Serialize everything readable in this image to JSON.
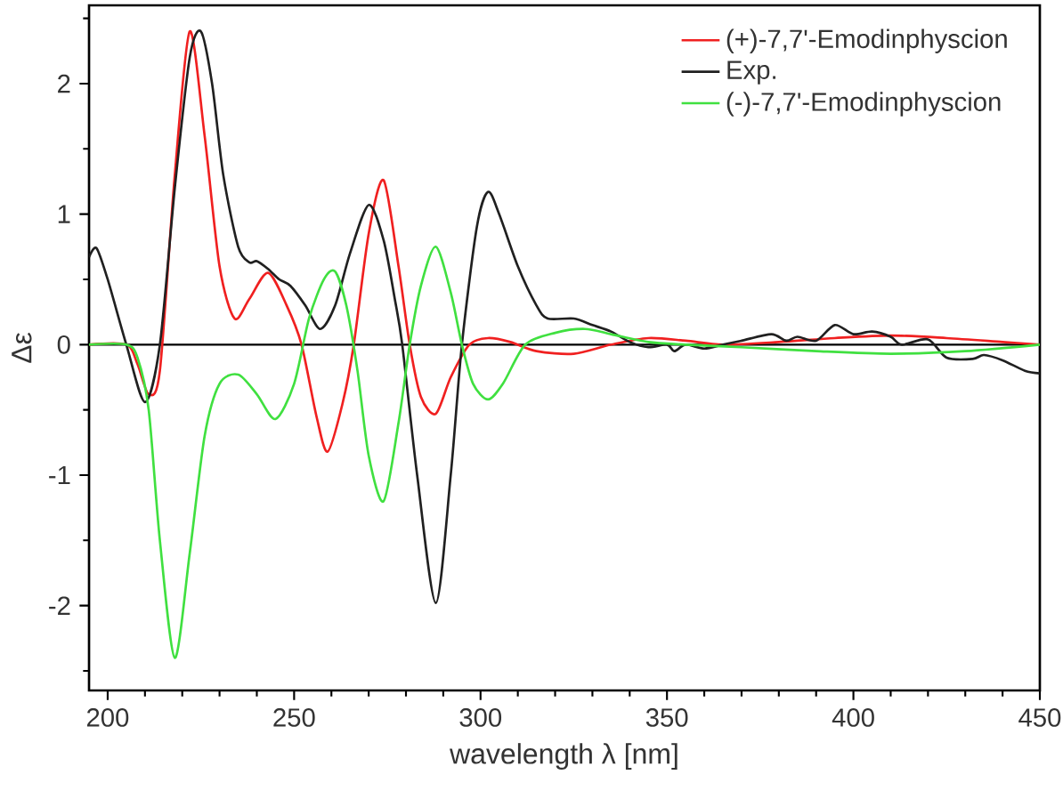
{
  "chart_data": {
    "type": "line",
    "xlabel": "wavelength λ [nm]",
    "ylabel": "Δε",
    "xlim": [
      195,
      450
    ],
    "ylim": [
      -2.65,
      2.6
    ],
    "xticks": [
      200,
      {
        "value": 210,
        "label": null
      },
      {
        "value": 220,
        "label": null
      },
      {
        "value": 230,
        "label": null
      },
      {
        "value": 240,
        "label": null
      },
      250,
      {
        "value": 260,
        "label": null
      },
      {
        "value": 270,
        "label": null
      },
      {
        "value": 280,
        "label": null
      },
      {
        "value": 290,
        "label": null
      },
      300,
      {
        "value": 310,
        "label": null
      },
      {
        "value": 320,
        "label": null
      },
      {
        "value": 330,
        "label": null
      },
      {
        "value": 340,
        "label": null
      },
      350,
      {
        "value": 360,
        "label": null
      },
      {
        "value": 370,
        "label": null
      },
      {
        "value": 380,
        "label": null
      },
      {
        "value": 390,
        "label": null
      },
      400,
      {
        "value": 410,
        "label": null
      },
      {
        "value": 420,
        "label": null
      },
      {
        "value": 430,
        "label": null
      },
      {
        "value": 440,
        "label": null
      },
      450
    ],
    "yticks": [
      {
        "value": -2.5,
        "label": null
      },
      -2,
      {
        "value": -1.5,
        "label": null
      },
      -1,
      {
        "value": -0.5,
        "label": null
      },
      0,
      {
        "value": 0.5,
        "label": null
      },
      1,
      {
        "value": 1.5,
        "label": null
      },
      2,
      {
        "value": 2.5,
        "label": null
      }
    ],
    "grid": false,
    "legend": "top right",
    "marker": "none",
    "line_style": "solid",
    "ref_lines": [
      {
        "axis": "y",
        "value": 0,
        "color": "#000000"
      }
    ],
    "series": [
      {
        "name": "(+)-7,7'-Emodinphyscion",
        "color": "#f02020",
        "x": [
          195,
          205,
          208,
          211,
          214,
          218,
          222,
          226,
          230,
          234,
          238,
          243,
          248,
          252,
          256,
          259,
          263,
          266,
          270,
          274,
          278,
          281,
          284,
          288,
          292,
          297,
          302,
          308,
          315,
          325,
          335,
          345,
          355,
          365,
          380,
          395,
          410,
          425,
          440,
          450
        ],
        "values": [
          0,
          0,
          -0.15,
          -0.38,
          -0.2,
          1.3,
          2.4,
          1.6,
          0.6,
          0.2,
          0.35,
          0.55,
          0.3,
          0,
          -0.55,
          -0.82,
          -0.45,
          0,
          0.85,
          1.26,
          0.6,
          0,
          -0.4,
          -0.53,
          -0.25,
          0,
          0.05,
          0.02,
          -0.05,
          -0.07,
          0,
          0.05,
          0.03,
          0,
          0.02,
          0.05,
          0.07,
          0.05,
          0.02,
          0
        ]
      },
      {
        "name": "Exp.",
        "color": "#202020",
        "x": [
          195,
          197,
          200,
          205,
          210,
          214,
          218,
          222,
          225,
          228,
          231,
          235,
          238,
          240,
          243,
          246,
          249,
          253,
          257,
          261,
          265,
          270,
          274,
          277,
          279,
          283,
          288,
          292,
          295,
          299,
          302,
          305,
          310,
          315,
          318,
          325,
          330,
          335,
          340,
          345,
          350,
          352,
          355,
          360,
          365,
          370,
          378,
          382,
          385,
          390,
          395,
          400,
          405,
          410,
          413,
          420,
          425,
          432,
          435,
          440,
          446,
          450
        ],
        "values": [
          0.67,
          0.74,
          0.5,
          0,
          -0.44,
          0,
          1.2,
          2.2,
          2.4,
          2.0,
          1.3,
          0.75,
          0.63,
          0.64,
          0.58,
          0.5,
          0.45,
          0.3,
          0.12,
          0.3,
          0.7,
          1.07,
          0.8,
          0.35,
          0,
          -1.0,
          -1.98,
          -1.0,
          0,
          0.9,
          1.17,
          1.0,
          0.6,
          0.3,
          0.2,
          0.2,
          0.15,
          0.1,
          0.02,
          -0.02,
          0,
          -0.05,
          0,
          -0.03,
          0,
          0.03,
          0.08,
          0.03,
          0.06,
          0.03,
          0.15,
          0.08,
          0.1,
          0.06,
          0,
          0.04,
          -0.1,
          -0.11,
          -0.08,
          -0.12,
          -0.2,
          -0.22
        ]
      },
      {
        "name": "(-)-7,7'-Emodinphyscion",
        "color": "#40e040",
        "x": [
          195,
          205,
          208,
          211,
          214,
          218,
          222,
          226,
          230,
          235,
          240,
          245,
          250,
          254,
          258,
          261,
          264,
          267,
          270,
          274,
          278,
          281,
          284,
          288,
          292,
          295,
          298,
          302,
          306,
          312,
          320,
          328,
          335,
          345,
          355,
          370,
          390,
          410,
          430,
          450
        ],
        "values": [
          0,
          0,
          -0.1,
          -0.5,
          -1.5,
          -2.4,
          -1.6,
          -0.7,
          -0.3,
          -0.23,
          -0.38,
          -0.57,
          -0.3,
          0.2,
          0.5,
          0.56,
          0.3,
          -0.2,
          -0.85,
          -1.2,
          -0.6,
          0,
          0.45,
          0.75,
          0.4,
          0,
          -0.3,
          -0.42,
          -0.3,
          0,
          0.09,
          0.12,
          0.08,
          0.02,
          0,
          -0.02,
          -0.05,
          -0.07,
          -0.05,
          0
        ]
      }
    ]
  }
}
